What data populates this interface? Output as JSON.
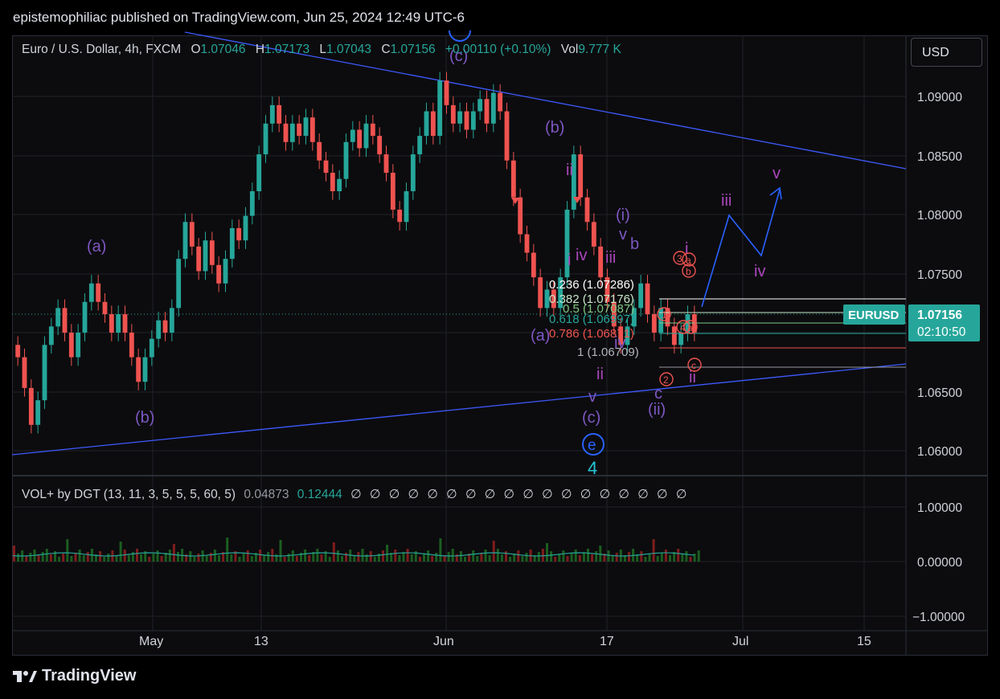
{
  "header": {
    "publisher_line": "epistemophiliac published on TradingView.com, Jun 25, 2024 12:49 UTC-6"
  },
  "currency_button": "USD",
  "legend": {
    "symbol": "Euro / U.S. Dollar, 4h, FXCM",
    "open_label": "O",
    "open": "1.07046",
    "high_label": "H",
    "high": "1.07173",
    "low_label": "L",
    "low": "1.07043",
    "close_label": "C",
    "close": "1.07156",
    "change": "+0.00110 (+0.10%)",
    "vol_label": "Vol",
    "vol": "9.777 K"
  },
  "indicator": {
    "name": "VOL+ by DGT (13, 11, 3, 5, 5, 5, 60, 5)",
    "value1": "0.04873",
    "value2": "0.12444",
    "placeholders": "∅ ∅ ∅ ∅ ∅ ∅ ∅ ∅ ∅ ∅ ∅ ∅ ∅ ∅ ∅ ∅ ∅ ∅"
  },
  "price_tag": {
    "symbol": "EURUSD",
    "price": "1.07156",
    "countdown": "02:10:50"
  },
  "colors": {
    "up": "#26a69a",
    "down": "#ef5350",
    "wave": "#7e57c2",
    "magenta": "#ab47bc",
    "trend": "#3d5afe",
    "projection": "#2962ff"
  },
  "footer": {
    "brand": "TradingView"
  },
  "chart_data": {
    "type": "candlestick",
    "timeframe": "4h",
    "symbol": "EURUSD",
    "y_ticks": [
      "1.09000",
      "1.08500",
      "1.08000",
      "1.07500",
      "1.07000",
      "1.06500",
      "1.06000"
    ],
    "x_ticks": [
      "May",
      "13",
      "Jun",
      "17",
      "Jul",
      "15"
    ],
    "ylim": [
      1.0585,
      1.093
    ],
    "volume_ticks": [
      "1.00000",
      "0.00000",
      "-1.00000"
    ],
    "ohlc_approx": [
      [
        1.069,
        1.068
      ],
      [
        1.068,
        1.0655
      ],
      [
        1.0655,
        1.0625
      ],
      [
        1.0625,
        1.0645
      ],
      [
        1.0645,
        1.069
      ],
      [
        1.069,
        1.0705
      ],
      [
        1.0705,
        1.072
      ],
      [
        1.072,
        1.07
      ],
      [
        1.07,
        1.068
      ],
      [
        1.068,
        1.07
      ],
      [
        1.07,
        1.0725
      ],
      [
        1.0725,
        1.074
      ],
      [
        1.074,
        1.0725
      ],
      [
        1.0725,
        1.0715
      ],
      [
        1.0715,
        1.07
      ],
      [
        1.07,
        1.0715
      ],
      [
        1.0715,
        1.07
      ],
      [
        1.07,
        1.068
      ],
      [
        1.068,
        1.066
      ],
      [
        1.066,
        1.068
      ],
      [
        1.068,
        1.0695
      ],
      [
        1.0695,
        1.071
      ],
      [
        1.071,
        1.07
      ],
      [
        1.07,
        1.072
      ],
      [
        1.072,
        1.076
      ],
      [
        1.076,
        1.079
      ],
      [
        1.079,
        1.077
      ],
      [
        1.077,
        1.075
      ],
      [
        1.075,
        1.0775
      ],
      [
        1.0775,
        1.0755
      ],
      [
        1.0755,
        1.074
      ],
      [
        1.074,
        1.076
      ],
      [
        1.076,
        1.0785
      ],
      [
        1.0785,
        1.0775
      ],
      [
        1.0775,
        1.0795
      ],
      [
        1.0795,
        1.0815
      ],
      [
        1.0815,
        1.0845
      ],
      [
        1.0845,
        1.087
      ],
      [
        1.087,
        1.0885
      ],
      [
        1.0885,
        1.087
      ],
      [
        1.087,
        1.0855
      ],
      [
        1.0855,
        1.087
      ],
      [
        1.087,
        1.086
      ],
      [
        1.086,
        1.0875
      ],
      [
        1.0875,
        1.0855
      ],
      [
        1.0855,
        1.084
      ],
      [
        1.084,
        1.083
      ],
      [
        1.083,
        1.0815
      ],
      [
        1.0815,
        1.0825
      ],
      [
        1.0825,
        1.0855
      ],
      [
        1.0855,
        1.0865
      ],
      [
        1.0865,
        1.085
      ],
      [
        1.085,
        1.087
      ],
      [
        1.087,
        1.086
      ],
      [
        1.086,
        1.0845
      ],
      [
        1.0845,
        1.083
      ],
      [
        1.083,
        1.08
      ],
      [
        1.08,
        1.079
      ],
      [
        1.079,
        1.0815
      ],
      [
        1.0815,
        1.0845
      ],
      [
        1.0845,
        1.086
      ],
      [
        1.086,
        1.088
      ],
      [
        1.088,
        1.086
      ],
      [
        1.086,
        1.0905
      ],
      [
        1.0905,
        1.0885
      ],
      [
        1.0885,
        1.087
      ],
      [
        1.087,
        1.088
      ],
      [
        1.088,
        1.0865
      ],
      [
        1.0865,
        1.088
      ],
      [
        1.088,
        1.089
      ],
      [
        1.089,
        1.087
      ],
      [
        1.087,
        1.0895
      ],
      [
        1.0895,
        1.088
      ],
      [
        1.088,
        1.084
      ],
      [
        1.084,
        1.081
      ],
      [
        1.081,
        1.078
      ],
      [
        1.078,
        1.0765
      ],
      [
        1.0765,
        1.0745
      ],
      [
        1.0745,
        1.072
      ],
      [
        1.072,
        1.0735
      ],
      [
        1.0735,
        1.072
      ],
      [
        1.072,
        1.0745
      ],
      [
        1.0745,
        1.08
      ],
      [
        1.08,
        1.0845
      ],
      [
        1.0845,
        1.081
      ],
      [
        1.081,
        1.079
      ],
      [
        1.079,
        1.077
      ],
      [
        1.077,
        1.0745
      ],
      [
        1.0745,
        1.0725
      ],
      [
        1.0725,
        1.0705
      ],
      [
        1.0705,
        1.069
      ],
      [
        1.069,
        1.0705
      ],
      [
        1.0705,
        1.072
      ],
      [
        1.072,
        1.074
      ],
      [
        1.074,
        1.0715
      ],
      [
        1.0715,
        1.07
      ],
      [
        1.07,
        1.072
      ],
      [
        1.072,
        1.0705
      ],
      [
        1.0705,
        1.069
      ],
      [
        1.069,
        1.07
      ],
      [
        1.07,
        1.0715
      ],
      [
        1.0715,
        1.07
      ]
    ],
    "volume_note": "histogram bars mostly green/red around the 0.0 line"
  }
}
